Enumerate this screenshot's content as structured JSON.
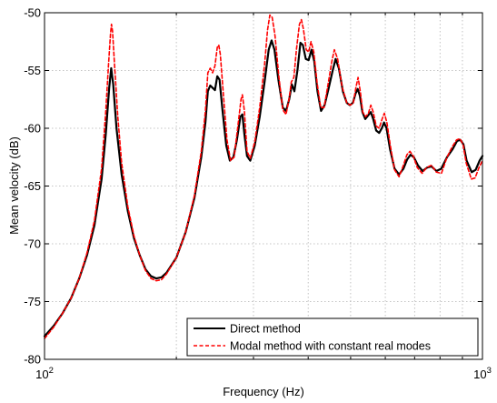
{
  "chart_data": {
    "type": "line",
    "xlabel": "Frequency (Hz)",
    "ylabel": "Mean velocity (dB)",
    "xscale": "log",
    "xlim": [
      100,
      1000
    ],
    "ylim": [
      -80,
      -50
    ],
    "grid": true,
    "legend_position": "bottom-right",
    "x_ticks": [
      {
        "value": 100,
        "base": "10",
        "exp": "2"
      },
      {
        "value": 1000,
        "base": "10",
        "exp": "3"
      }
    ],
    "y_ticks": [
      {
        "value": -50,
        "label": "-50"
      },
      {
        "value": -55,
        "label": "-55"
      },
      {
        "value": -60,
        "label": "-60"
      },
      {
        "value": -65,
        "label": "-65"
      },
      {
        "value": -70,
        "label": "-70"
      },
      {
        "value": -75,
        "label": "-75"
      },
      {
        "value": -80,
        "label": "-80"
      }
    ],
    "series": [
      {
        "name": "Direct method",
        "color": "#000000",
        "style": "solid",
        "points": [
          [
            100,
            -78.0
          ],
          [
            105,
            -77.1
          ],
          [
            110,
            -76.0
          ],
          [
            115,
            -74.7
          ],
          [
            120,
            -73.0
          ],
          [
            125,
            -71.0
          ],
          [
            130,
            -68.4
          ],
          [
            135,
            -64.4
          ],
          [
            138,
            -60.5
          ],
          [
            140.5,
            -56.5
          ],
          [
            142,
            -54.8
          ],
          [
            143.5,
            -56.2
          ],
          [
            146,
            -60.0
          ],
          [
            150,
            -64.0
          ],
          [
            155,
            -67.2
          ],
          [
            160,
            -69.5
          ],
          [
            165,
            -71.0
          ],
          [
            170,
            -72.2
          ],
          [
            175,
            -72.8
          ],
          [
            180,
            -73.0
          ],
          [
            185,
            -72.9
          ],
          [
            190,
            -72.5
          ],
          [
            200,
            -71.2
          ],
          [
            210,
            -69.0
          ],
          [
            220,
            -66.0
          ],
          [
            228,
            -62.5
          ],
          [
            233,
            -59.5
          ],
          [
            236,
            -56.8
          ],
          [
            239,
            -56.3
          ],
          [
            242,
            -56.5
          ],
          [
            245,
            -56.7
          ],
          [
            248,
            -55.5
          ],
          [
            251,
            -55.8
          ],
          [
            255,
            -58.5
          ],
          [
            260,
            -61.5
          ],
          [
            265,
            -62.8
          ],
          [
            270,
            -62.5
          ],
          [
            275,
            -61.0
          ],
          [
            280,
            -59.0
          ],
          [
            283,
            -58.8
          ],
          [
            286,
            -60.5
          ],
          [
            290,
            -62.4
          ],
          [
            295,
            -62.8
          ],
          [
            302,
            -61.5
          ],
          [
            310,
            -59.0
          ],
          [
            318,
            -56.0
          ],
          [
            325,
            -53.2
          ],
          [
            330,
            -52.4
          ],
          [
            335,
            -53.2
          ],
          [
            342,
            -55.8
          ],
          [
            350,
            -58.2
          ],
          [
            356,
            -58.5
          ],
          [
            362,
            -57.5
          ],
          [
            367,
            -56.2
          ],
          [
            372,
            -56.8
          ],
          [
            378,
            -55.0
          ],
          [
            384,
            -52.6
          ],
          [
            389,
            -52.8
          ],
          [
            395,
            -54.0
          ],
          [
            401,
            -54.1
          ],
          [
            407,
            -53.2
          ],
          [
            413,
            -54.2
          ],
          [
            420,
            -56.8
          ],
          [
            428,
            -58.5
          ],
          [
            436,
            -58.0
          ],
          [
            445,
            -56.6
          ],
          [
            455,
            -55.0
          ],
          [
            462,
            -54.0
          ],
          [
            470,
            -54.8
          ],
          [
            480,
            -56.8
          ],
          [
            490,
            -57.8
          ],
          [
            498,
            -58.0
          ],
          [
            506,
            -57.8
          ],
          [
            513,
            -57.0
          ],
          [
            519,
            -56.6
          ],
          [
            525,
            -57.2
          ],
          [
            532,
            -58.6
          ],
          [
            540,
            -59.2
          ],
          [
            548,
            -58.9
          ],
          [
            556,
            -58.6
          ],
          [
            563,
            -59.2
          ],
          [
            572,
            -60.2
          ],
          [
            581,
            -60.4
          ],
          [
            589,
            -60.0
          ],
          [
            596,
            -59.5
          ],
          [
            604,
            -60.0
          ],
          [
            615,
            -61.8
          ],
          [
            630,
            -63.5
          ],
          [
            645,
            -64.0
          ],
          [
            660,
            -63.5
          ],
          [
            673,
            -62.7
          ],
          [
            685,
            -62.3
          ],
          [
            697,
            -62.5
          ],
          [
            712,
            -63.2
          ],
          [
            730,
            -63.7
          ],
          [
            748,
            -63.4
          ],
          [
            765,
            -63.3
          ],
          [
            785,
            -63.7
          ],
          [
            805,
            -63.5
          ],
          [
            830,
            -62.5
          ],
          [
            855,
            -61.8
          ],
          [
            875,
            -61.1
          ],
          [
            890,
            -61.0
          ],
          [
            905,
            -61.4
          ],
          [
            920,
            -62.8
          ],
          [
            945,
            -63.8
          ],
          [
            965,
            -63.6
          ],
          [
            985,
            -62.8
          ],
          [
            1000,
            -62.4
          ]
        ]
      },
      {
        "name": "Modal method with constant real modes",
        "color": "#ff0000",
        "style": "dashed",
        "points": [
          [
            100,
            -78.2
          ],
          [
            105,
            -77.2
          ],
          [
            110,
            -76.0
          ],
          [
            115,
            -74.7
          ],
          [
            120,
            -73.0
          ],
          [
            125,
            -70.8
          ],
          [
            130,
            -68.0
          ],
          [
            135,
            -63.5
          ],
          [
            138,
            -58.5
          ],
          [
            140,
            -54.5
          ],
          [
            141.5,
            -51.8
          ],
          [
            142.2,
            -51.0
          ],
          [
            143,
            -51.6
          ],
          [
            144.5,
            -54.5
          ],
          [
            147,
            -59.0
          ],
          [
            150,
            -63.0
          ],
          [
            155,
            -66.8
          ],
          [
            160,
            -69.3
          ],
          [
            165,
            -71.0
          ],
          [
            170,
            -72.3
          ],
          [
            175,
            -73.0
          ],
          [
            180,
            -73.2
          ],
          [
            185,
            -73.1
          ],
          [
            190,
            -72.6
          ],
          [
            200,
            -71.2
          ],
          [
            210,
            -69.0
          ],
          [
            220,
            -65.8
          ],
          [
            228,
            -62.0
          ],
          [
            233,
            -58.5
          ],
          [
            236,
            -55.2
          ],
          [
            239,
            -54.8
          ],
          [
            242,
            -55.2
          ],
          [
            245,
            -54.6
          ],
          [
            248,
            -53.0
          ],
          [
            250,
            -52.8
          ],
          [
            252,
            -53.6
          ],
          [
            256,
            -57.0
          ],
          [
            261,
            -61.0
          ],
          [
            266,
            -62.8
          ],
          [
            271,
            -62.5
          ],
          [
            276,
            -60.0
          ],
          [
            281,
            -57.5
          ],
          [
            283,
            -57.1
          ],
          [
            286,
            -58.5
          ],
          [
            290,
            -62.0
          ],
          [
            295,
            -62.6
          ],
          [
            302,
            -61.2
          ],
          [
            310,
            -58.2
          ],
          [
            318,
            -54.5
          ],
          [
            323,
            -51.5
          ],
          [
            327,
            -50.2
          ],
          [
            331,
            -50.4
          ],
          [
            336,
            -52.0
          ],
          [
            343,
            -55.6
          ],
          [
            350,
            -58.4
          ],
          [
            356,
            -58.8
          ],
          [
            362,
            -57.4
          ],
          [
            366,
            -56.0
          ],
          [
            371,
            -55.6
          ],
          [
            376,
            -53.2
          ],
          [
            382,
            -51.0
          ],
          [
            386,
            -50.6
          ],
          [
            390,
            -51.4
          ],
          [
            396,
            -53.2
          ],
          [
            401,
            -53.4
          ],
          [
            406,
            -52.5
          ],
          [
            412,
            -53.4
          ],
          [
            419,
            -56.0
          ],
          [
            427,
            -58.2
          ],
          [
            435,
            -58.2
          ],
          [
            444,
            -56.2
          ],
          [
            453,
            -54.2
          ],
          [
            459,
            -53.2
          ],
          [
            467,
            -54.0
          ],
          [
            478,
            -56.4
          ],
          [
            490,
            -57.8
          ],
          [
            499,
            -58.0
          ],
          [
            507,
            -57.8
          ],
          [
            514,
            -56.5
          ],
          [
            520,
            -55.6
          ],
          [
            526,
            -56.8
          ],
          [
            533,
            -58.6
          ],
          [
            541,
            -59.0
          ],
          [
            549,
            -58.7
          ],
          [
            556,
            -58.0
          ],
          [
            563,
            -58.6
          ],
          [
            572,
            -59.8
          ],
          [
            581,
            -60.0
          ],
          [
            590,
            -59.2
          ],
          [
            597,
            -58.7
          ],
          [
            605,
            -59.5
          ],
          [
            616,
            -61.5
          ],
          [
            630,
            -63.6
          ],
          [
            645,
            -64.2
          ],
          [
            660,
            -63.2
          ],
          [
            672,
            -62.3
          ],
          [
            683,
            -62.0
          ],
          [
            695,
            -62.4
          ],
          [
            710,
            -63.4
          ],
          [
            728,
            -63.9
          ],
          [
            746,
            -63.4
          ],
          [
            765,
            -63.2
          ],
          [
            785,
            -63.8
          ],
          [
            806,
            -63.9
          ],
          [
            830,
            -62.5
          ],
          [
            853,
            -61.6
          ],
          [
            873,
            -61.0
          ],
          [
            888,
            -60.9
          ],
          [
            903,
            -61.4
          ],
          [
            918,
            -63.0
          ],
          [
            943,
            -64.4
          ],
          [
            962,
            -64.3
          ],
          [
            982,
            -63.4
          ],
          [
            1000,
            -62.8
          ]
        ]
      }
    ]
  }
}
